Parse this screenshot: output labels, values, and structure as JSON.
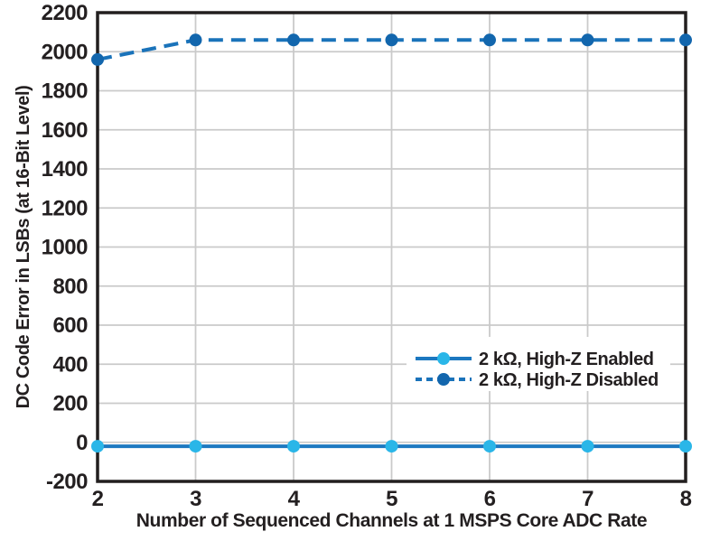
{
  "chart_data": {
    "type": "line",
    "title": "",
    "xlabel": "Number of Sequenced Channels at 1 MSPS Core ADC Rate",
    "ylabel": "DC Code Error in LSBs (at 16-Bit Level)",
    "x": [
      2,
      3,
      4,
      5,
      6,
      7,
      8
    ],
    "x_ticks": [
      2,
      3,
      4,
      5,
      6,
      7,
      8
    ],
    "y_ticks": [
      2200,
      2000,
      1800,
      1600,
      1400,
      1200,
      1000,
      800,
      600,
      400,
      200,
      0,
      -200
    ],
    "xlim": [
      2,
      8
    ],
    "ylim": [
      -200,
      2200
    ],
    "grid": true,
    "legend_position": "inside-right-middle",
    "series": [
      {
        "name": "2 kΩ, High-Z Enabled",
        "values": [
          -20,
          -20,
          -20,
          -20,
          -20,
          -20,
          -20
        ],
        "line_style": "solid",
        "line_color": "#1c78c0",
        "marker_color": "#2ab6e8"
      },
      {
        "name": "2 kΩ, High-Z Disabled",
        "values": [
          1960,
          2060,
          2060,
          2060,
          2060,
          2060,
          2060
        ],
        "line_style": "dashed",
        "line_color": "#1a73ba",
        "marker_color": "#1266ad"
      }
    ]
  },
  "colors": {
    "frame": "#221f1f",
    "gridline": "#cacaca",
    "text": "#231f20",
    "background": "#ffffff"
  }
}
